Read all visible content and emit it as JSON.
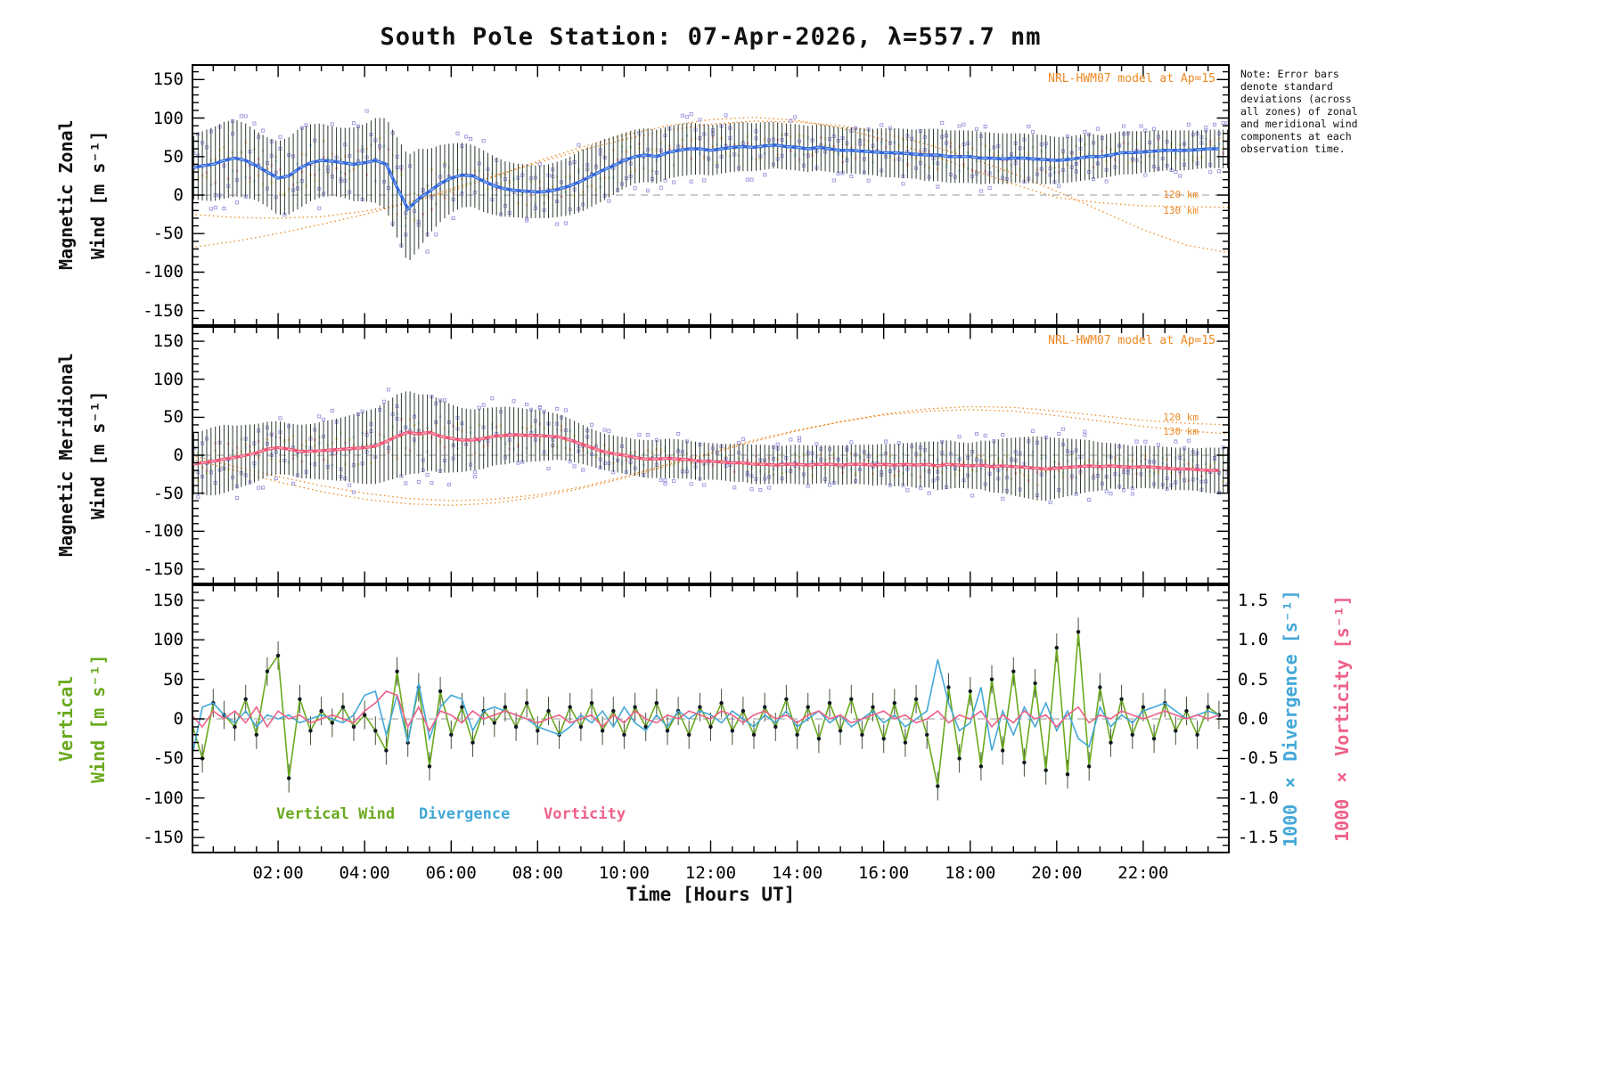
{
  "title": "South Pole Station: 07-Apr-2026, λ=557.7 nm",
  "note": "Note: Error bars denote standard deviations (across all zones) of zonal and meridional wind components at each observation time.",
  "model_label": "NRL-HWM07 model at Ap=15",
  "alt_labels": [
    "120 km",
    "130 km"
  ],
  "xlabel": "Time [Hours UT]",
  "axis_titles": {
    "zonal_line1": "Magnetic Zonal",
    "zonal_line2": "Wind [m s⁻¹]",
    "meridional_line1": "Magnetic Meridional",
    "meridional_line2": "Wind [m s⁻¹]",
    "vertical_line1": "Vertical",
    "vertical_line2": "Wind [m s⁻¹]",
    "divergence": "1000 × Divergence [s⁻¹]",
    "vorticity": "1000 × Vorticity [s⁻¹]"
  },
  "legend": {
    "vertical": "Vertical Wind",
    "divergence": "Divergence",
    "vorticity": "Vorticity"
  },
  "ytick_values": [
    150,
    100,
    50,
    0,
    -50,
    -100,
    -150
  ],
  "ytick_labels": [
    "150",
    "100",
    "50",
    "0",
    "-50",
    "-100",
    "-150"
  ],
  "rtick_values": [
    1.5,
    1.0,
    0.5,
    0.0,
    -0.5,
    -1.0,
    -1.5
  ],
  "rtick_labels": [
    "1.5",
    "1.0",
    "0.5",
    "0.0",
    "-0.5",
    "-1.0",
    "-1.5"
  ],
  "xtick_values": [
    2,
    4,
    6,
    8,
    10,
    12,
    14,
    16,
    18,
    20,
    22
  ],
  "xtick_labels": [
    "02:00",
    "04:00",
    "06:00",
    "08:00",
    "10:00",
    "12:00",
    "14:00",
    "16:00",
    "18:00",
    "20:00",
    "22:00"
  ],
  "colors": {
    "zonal": "#3366dd",
    "zonal_core": "#8ab6f2",
    "meridional": "#ee5577",
    "meridional_core": "#ffaebb",
    "vertical": "#6aaa1e",
    "divergence": "#44a8d8",
    "vorticity": "#ee6088",
    "model": "#ee8822",
    "scatter": "#9b97dd",
    "errorbar": "#2c3a2c",
    "zero": "#999999"
  },
  "chart_data": [
    {
      "id": "magnetic-zonal-wind",
      "type": "line",
      "ylabel": "Magnetic Zonal Wind [m s⁻¹]",
      "xlim": [
        0,
        24
      ],
      "ylim": [
        -170,
        170
      ],
      "x_start": 0,
      "x_step": 0.25,
      "mean": [
        35,
        38,
        40,
        45,
        48,
        45,
        38,
        30,
        22,
        25,
        35,
        42,
        45,
        44,
        42,
        40,
        42,
        45,
        40,
        10,
        -18,
        -5,
        5,
        15,
        22,
        26,
        25,
        18,
        12,
        8,
        6,
        5,
        4,
        5,
        8,
        12,
        18,
        25,
        32,
        38,
        45,
        50,
        52,
        50,
        55,
        58,
        60,
        60,
        58,
        60,
        62,
        63,
        62,
        64,
        65,
        63,
        62,
        60,
        62,
        60,
        58,
        58,
        57,
        56,
        55,
        55,
        54,
        53,
        52,
        52,
        50,
        50,
        50,
        48,
        48,
        47,
        48,
        48,
        47,
        46,
        45,
        46,
        48,
        50,
        50,
        52,
        55,
        55,
        56,
        57,
        58,
        58,
        58,
        59,
        60,
        60
      ],
      "std": [
        40,
        45,
        48,
        50,
        50,
        48,
        45,
        45,
        48,
        50,
        52,
        50,
        48,
        45,
        45,
        48,
        50,
        55,
        60,
        65,
        70,
        65,
        55,
        50,
        45,
        42,
        40,
        40,
        38,
        36,
        35,
        35,
        34,
        35,
        36,
        38,
        40,
        40,
        40,
        38,
        36,
        35,
        35,
        35,
        34,
        34,
        34,
        33,
        33,
        32,
        32,
        32,
        31,
        31,
        30,
        30,
        30,
        30,
        30,
        30,
        30,
        30,
        30,
        30,
        32,
        32,
        32,
        32,
        34,
        34,
        34,
        34,
        34,
        34,
        33,
        33,
        32,
        32,
        32,
        32,
        30,
        30,
        30,
        30,
        28,
        28,
        28,
        28,
        27,
        27,
        26,
        26,
        26,
        25,
        25,
        25
      ],
      "models": [
        {
          "name": "NRL-HWM07 120 km",
          "x_start": 0,
          "x_step": 1,
          "values": [
            -25,
            -29,
            -30,
            -28,
            -21,
            -10,
            5,
            24,
            44,
            62,
            78,
            90,
            98,
            101,
            97,
            87,
            72,
            54,
            34,
            14,
            -3,
            -10,
            -14,
            -15,
            -16
          ]
        },
        {
          "name": "NRL-HWM07 130 km",
          "x_start": 0,
          "x_step": 1,
          "values": [
            -68,
            -60,
            -50,
            -38,
            -25,
            -10,
            8,
            25,
            42,
            58,
            72,
            84,
            92,
            96,
            95,
            90,
            80,
            66,
            48,
            28,
            5,
            -20,
            -45,
            -65,
            -75
          ]
        }
      ]
    },
    {
      "id": "magnetic-meridional-wind",
      "type": "line",
      "ylabel": "Magnetic Meridional Wind [m s⁻¹]",
      "xlim": [
        0,
        24
      ],
      "ylim": [
        -170,
        170
      ],
      "x_start": 0,
      "x_step": 0.25,
      "mean": [
        -12,
        -10,
        -8,
        -5,
        -3,
        0,
        3,
        8,
        10,
        8,
        5,
        5,
        6,
        7,
        8,
        9,
        10,
        12,
        18,
        25,
        30,
        28,
        30,
        25,
        22,
        20,
        20,
        22,
        25,
        26,
        27,
        26,
        26,
        25,
        24,
        20,
        15,
        10,
        5,
        2,
        0,
        -3,
        -5,
        -5,
        -4,
        -5,
        -6,
        -8,
        -8,
        -9,
        -10,
        -10,
        -12,
        -12,
        -13,
        -12,
        -12,
        -13,
        -12,
        -12,
        -13,
        -12,
        -12,
        -13,
        -12,
        -13,
        -12,
        -13,
        -12,
        -14,
        -12,
        -13,
        -14,
        -13,
        -15,
        -14,
        -15,
        -16,
        -17,
        -18,
        -17,
        -16,
        -15,
        -14,
        -15,
        -14,
        -15,
        -16,
        -15,
        -16,
        -17,
        -18,
        -18,
        -19,
        -20,
        -20
      ],
      "std": [
        40,
        42,
        45,
        45,
        42,
        40,
        38,
        36,
        35,
        34,
        35,
        36,
        38,
        40,
        42,
        45,
        48,
        50,
        52,
        55,
        55,
        52,
        50,
        48,
        45,
        42,
        40,
        40,
        38,
        38,
        36,
        35,
        34,
        32,
        30,
        28,
        26,
        25,
        24,
        24,
        24,
        24,
        25,
        25,
        26,
        26,
        25,
        25,
        24,
        24,
        25,
        25,
        26,
        26,
        25,
        25,
        26,
        26,
        25,
        25,
        26,
        26,
        26,
        27,
        27,
        28,
        28,
        30,
        30,
        32,
        32,
        30,
        30,
        32,
        34,
        36,
        38,
        40,
        42,
        42,
        40,
        38,
        36,
        34,
        32,
        30,
        30,
        28,
        28,
        28,
        28,
        28,
        28,
        28,
        30,
        30
      ],
      "models": [
        {
          "name": "NRL-HWM07 120 km",
          "x_start": 0,
          "x_step": 1,
          "values": [
            0,
            -15,
            -28,
            -40,
            -50,
            -57,
            -60,
            -58,
            -52,
            -42,
            -28,
            -12,
            4,
            20,
            33,
            44,
            53,
            58,
            60,
            58,
            52,
            45,
            38,
            32,
            28
          ]
        },
        {
          "name": "NRL-HWM07 130 km",
          "x_start": 0,
          "x_step": 1,
          "values": [
            -5,
            -20,
            -35,
            -48,
            -58,
            -64,
            -66,
            -63,
            -55,
            -44,
            -30,
            -14,
            2,
            18,
            32,
            44,
            54,
            61,
            64,
            63,
            58,
            52,
            46,
            42,
            40
          ]
        }
      ]
    },
    {
      "id": "vertical-wind-divergence-vorticity",
      "type": "line",
      "xlim": [
        0,
        24
      ],
      "ylim": [
        -170,
        170
      ],
      "ylim_right": [
        -1.7,
        1.7
      ],
      "series": [
        {
          "name": "Vertical Wind",
          "axis": "left",
          "units": "m s⁻¹",
          "err": 18,
          "x_start": 0,
          "x_step": 0.25,
          "values": [
            -5,
            -50,
            20,
            5,
            -10,
            25,
            -20,
            60,
            80,
            -75,
            25,
            -15,
            10,
            -5,
            15,
            -10,
            5,
            -15,
            -40,
            60,
            -30,
            40,
            -60,
            35,
            -20,
            15,
            -30,
            10,
            -5,
            15,
            -10,
            20,
            -15,
            10,
            -20,
            15,
            -10,
            20,
            -15,
            10,
            -20,
            15,
            -10,
            20,
            -15,
            10,
            -20,
            15,
            -10,
            20,
            -15,
            10,
            -20,
            15,
            -10,
            25,
            -20,
            15,
            -25,
            20,
            -15,
            25,
            -20,
            15,
            -25,
            20,
            -30,
            25,
            -20,
            -85,
            40,
            -50,
            35,
            -60,
            50,
            -40,
            60,
            -55,
            45,
            -65,
            90,
            -70,
            110,
            -60,
            40,
            -30,
            25,
            -20,
            15,
            -25,
            20,
            -15,
            10,
            -20,
            15,
            5
          ]
        },
        {
          "name": "Divergence",
          "axis": "right",
          "units": "1000 × s⁻¹",
          "x_start": 0,
          "x_step": 0.25,
          "values": [
            -0.5,
            0.15,
            0.2,
            0.05,
            -0.05,
            0.1,
            -0.1,
            0.05,
            0,
            0.05,
            -0.05,
            0,
            0.05,
            0,
            -0.05,
            0.05,
            0.3,
            0.35,
            -0.2,
            0.3,
            -0.3,
            0.45,
            -0.25,
            0.15,
            0.3,
            0.25,
            -0.15,
            0.1,
            0.15,
            0.1,
            0.05,
            0,
            -0.1,
            -0.15,
            -0.2,
            -0.1,
            0.05,
            -0.05,
            0.1,
            -0.1,
            0.15,
            -0.05,
            -0.15,
            0.05,
            -0.1,
            0.1,
            0,
            0.1,
            0.05,
            -0.05,
            0.1,
            0,
            -0.1,
            0.05,
            -0.05,
            0.1,
            -0.1,
            0,
            0.1,
            -0.05,
            0.05,
            -0.1,
            0,
            0.1,
            -0.05,
            0.05,
            -0.1,
            0,
            0.1,
            0.75,
            0.2,
            -0.15,
            -0.05,
            0.4,
            -0.4,
            0.1,
            -0.2,
            0.15,
            -0.1,
            0.2,
            -0.15,
            0.1,
            -0.25,
            -0.35,
            0.15,
            -0.1,
            0.05,
            -0.05,
            0.1,
            0.15,
            0.2,
            0.1,
            0,
            0.05,
            0.1,
            0.05
          ]
        },
        {
          "name": "Vorticity",
          "axis": "right",
          "units": "1000 × s⁻¹",
          "x_start": 0,
          "x_step": 0.25,
          "values": [
            0.05,
            -0.1,
            0.1,
            0,
            0.1,
            -0.05,
            0.15,
            -0.1,
            0.1,
            0,
            0.05,
            -0.05,
            0,
            0.05,
            0,
            -0.05,
            0.1,
            0.2,
            0.35,
            0.3,
            -0.1,
            0.15,
            -0.15,
            0.1,
            0.05,
            -0.05,
            0.1,
            0,
            0.05,
            0.1,
            0.05,
            0,
            -0.05,
            0,
            0.05,
            -0.05,
            0,
            0.05,
            -0.1,
            0.05,
            -0.05,
            0.1,
            0,
            -0.05,
            0.05,
            0,
            0.1,
            0.05,
            0,
            0.1,
            0.05,
            -0.05,
            0.05,
            0.1,
            0,
            0.05,
            -0.05,
            0.05,
            0.1,
            0,
            0.05,
            -0.05,
            0,
            0.05,
            0.1,
            0,
            0.05,
            -0.05,
            0,
            0.1,
            -0.05,
            0.05,
            0,
            0.1,
            -0.1,
            0.05,
            -0.05,
            0.1,
            0,
            0.05,
            -0.1,
            0.05,
            0.15,
            -0.05,
            0.05,
            0,
            0.1,
            0.05,
            0,
            0.05,
            0.1,
            0.05,
            0,
            0.05,
            0,
            0.05
          ]
        }
      ]
    }
  ]
}
